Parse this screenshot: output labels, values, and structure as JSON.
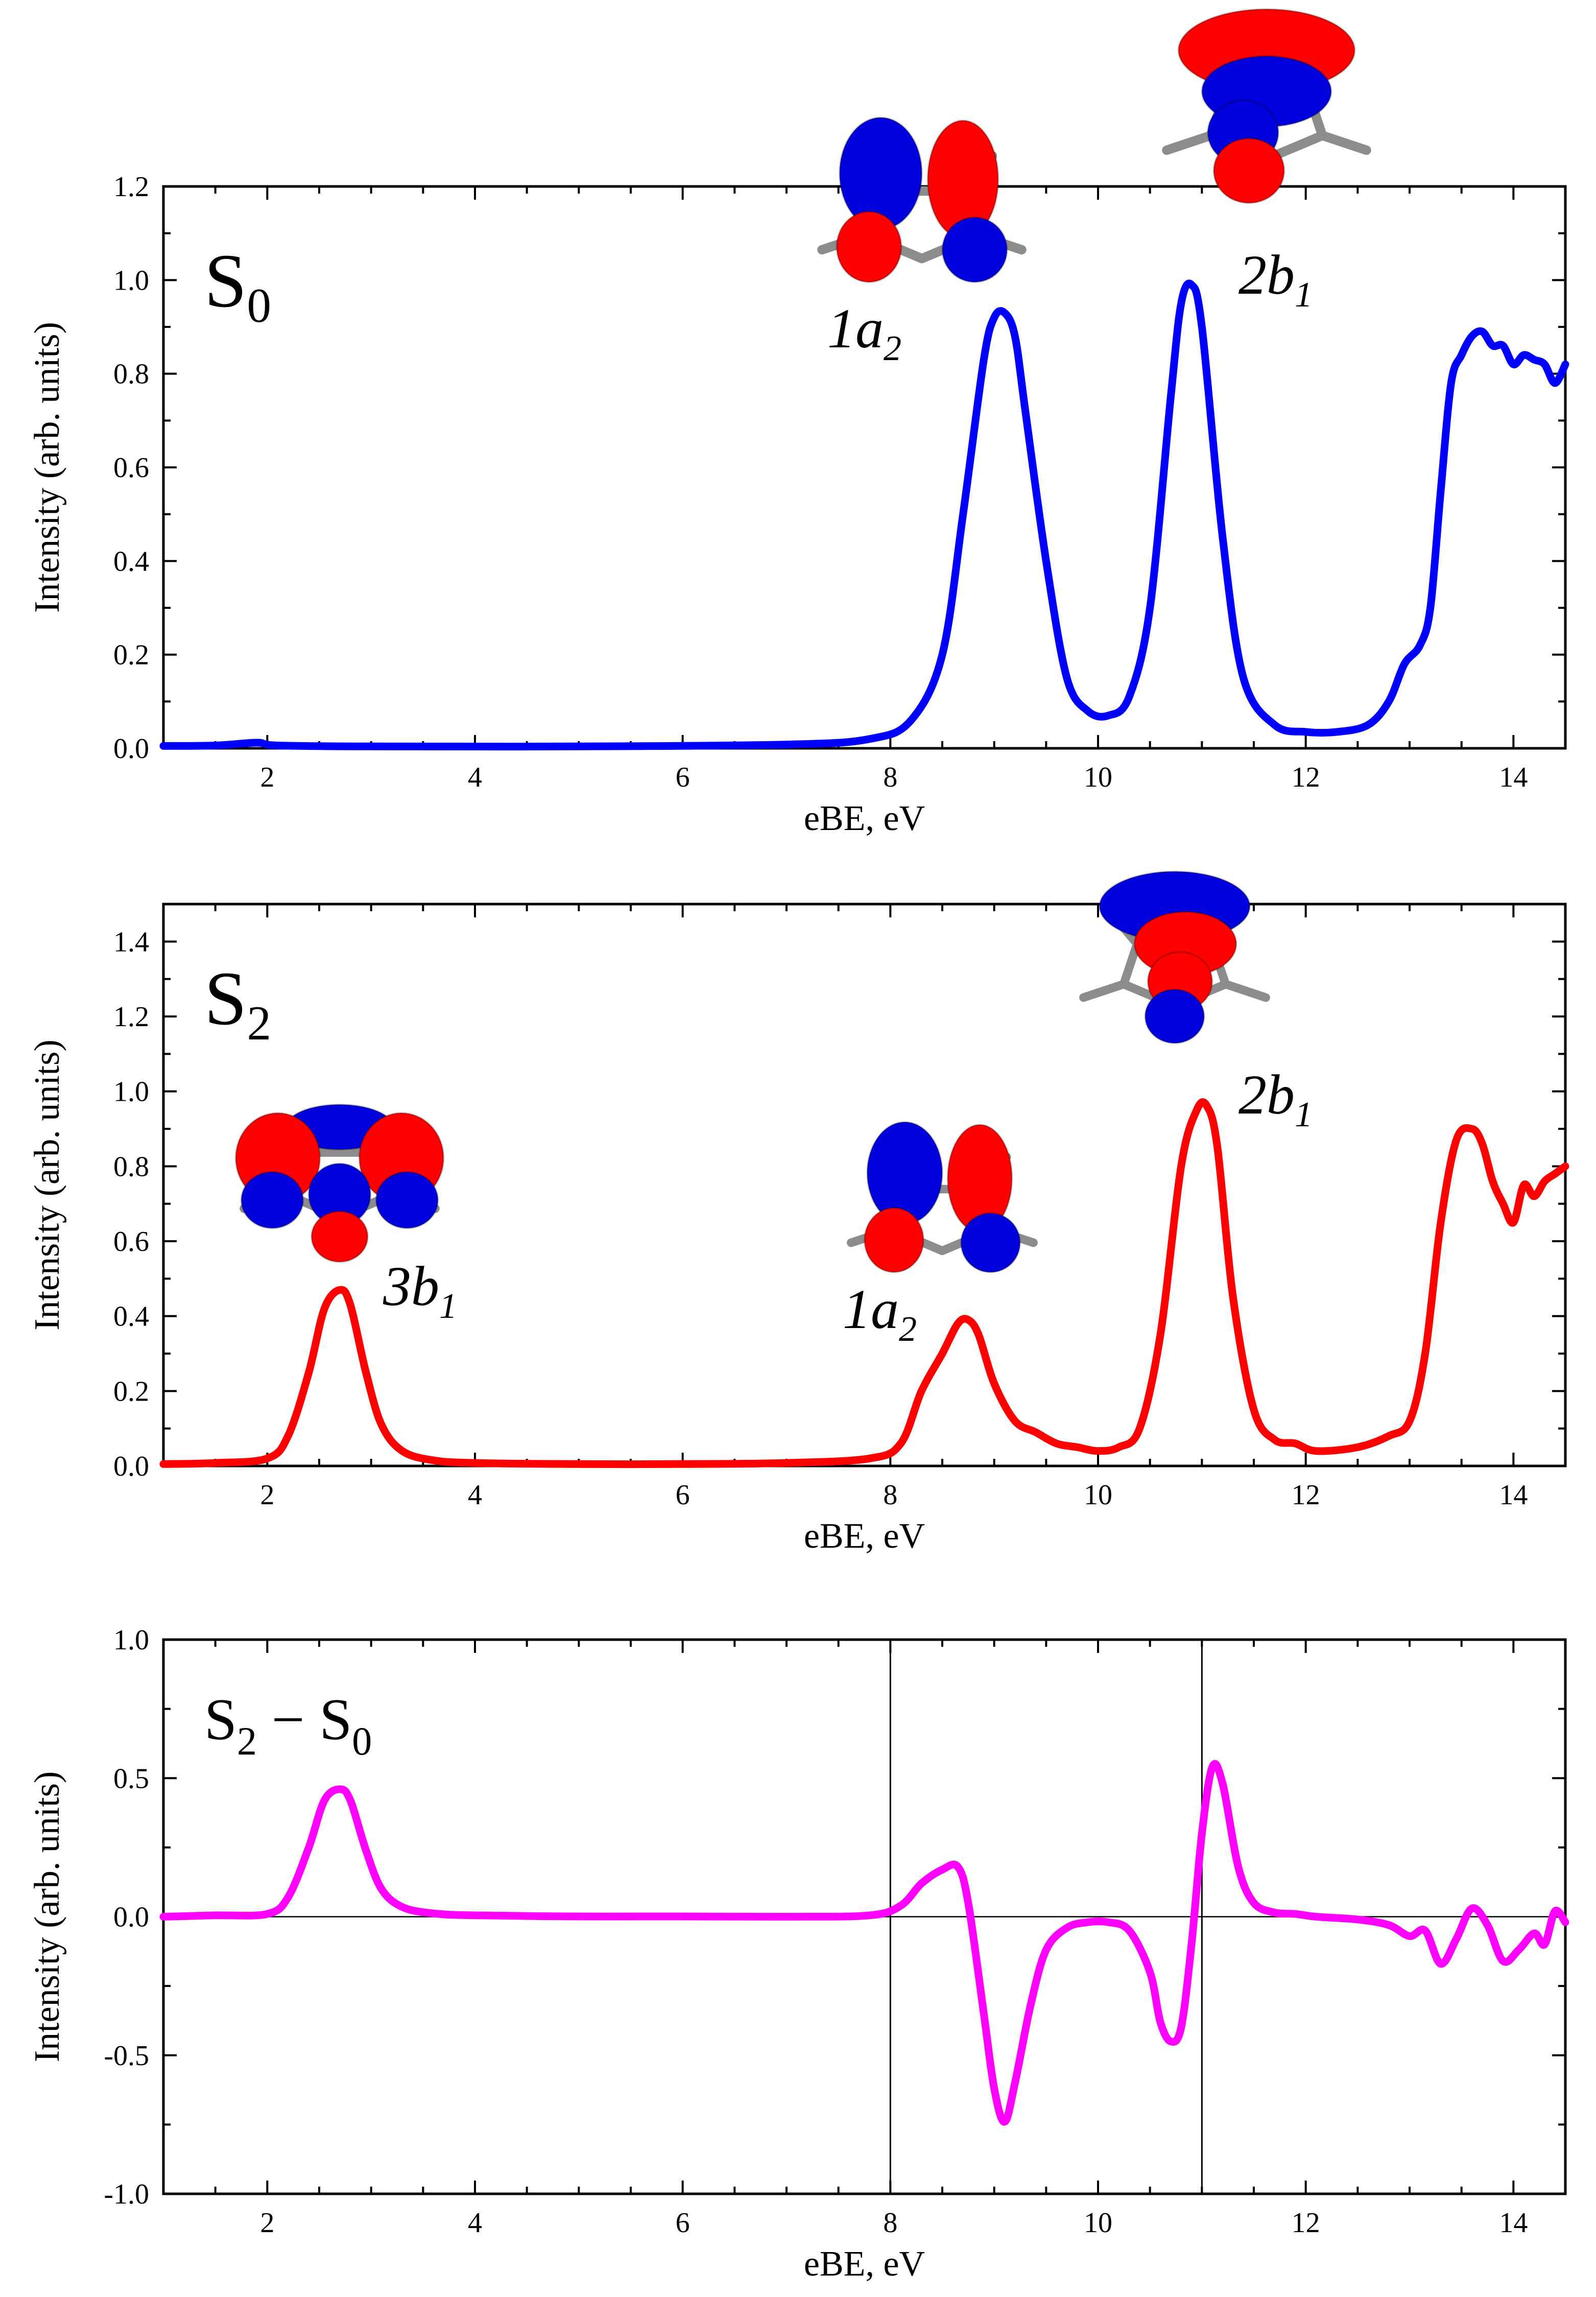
{
  "chart_data": [
    {
      "type": "line",
      "panel": "S0",
      "label_main": "S",
      "label_sub": "0",
      "xlabel": "eBE, eV",
      "ylabel": "Intensity (arb. units)",
      "xlim": [
        1.0,
        14.5
      ],
      "ylim": [
        0.0,
        1.2
      ],
      "xticks": [
        "2",
        "4",
        "6",
        "8",
        "10",
        "12",
        "14"
      ],
      "yticks": [
        "0.0",
        "0.2",
        "0.4",
        "0.6",
        "0.8",
        "1.0",
        "1.2"
      ],
      "color": "#0000ff",
      "x": [
        1.0,
        1.5,
        1.9,
        2.1,
        3.0,
        5.0,
        7.0,
        7.8,
        8.2,
        8.5,
        8.7,
        8.9,
        9.0,
        9.1,
        9.2,
        9.3,
        9.5,
        9.7,
        9.9,
        10.1,
        10.3,
        10.5,
        10.7,
        10.8,
        10.9,
        11.0,
        11.2,
        11.4,
        11.7,
        12.0,
        12.3,
        12.6,
        12.8,
        12.95,
        13.1,
        13.2,
        13.3,
        13.4,
        13.5,
        13.6,
        13.7,
        13.8,
        13.9,
        14.0,
        14.1,
        14.2,
        14.3,
        14.4,
        14.5
      ],
      "y": [
        0.005,
        0.006,
        0.012,
        0.006,
        0.004,
        0.004,
        0.008,
        0.02,
        0.06,
        0.2,
        0.5,
        0.83,
        0.92,
        0.93,
        0.88,
        0.72,
        0.4,
        0.15,
        0.08,
        0.07,
        0.11,
        0.3,
        0.75,
        0.95,
        0.99,
        0.9,
        0.45,
        0.15,
        0.05,
        0.035,
        0.035,
        0.05,
        0.1,
        0.18,
        0.22,
        0.3,
        0.55,
        0.78,
        0.84,
        0.88,
        0.89,
        0.86,
        0.86,
        0.82,
        0.84,
        0.83,
        0.82,
        0.78,
        0.82
      ],
      "annotations": [
        {
          "label": "1a",
          "sub": "2",
          "x": 9.1
        },
        {
          "label": "2b",
          "sub": "1",
          "x": 10.9
        }
      ]
    },
    {
      "type": "line",
      "panel": "S2",
      "label_main": "S",
      "label_sub": "2",
      "xlabel": "eBE, eV",
      "ylabel": "Intensity (arb. units)",
      "xlim": [
        1.0,
        14.5
      ],
      "ylim": [
        0.0,
        1.5
      ],
      "xticks": [
        "2",
        "4",
        "6",
        "8",
        "10",
        "12",
        "14"
      ],
      "yticks": [
        "0.0",
        "0.2",
        "0.4",
        "0.6",
        "0.8",
        "1.0",
        "1.2",
        "1.4"
      ],
      "color": "#ff0000",
      "x": [
        1.0,
        1.5,
        2.0,
        2.2,
        2.4,
        2.55,
        2.7,
        2.8,
        2.95,
        3.1,
        3.3,
        3.6,
        4.0,
        5.0,
        6.0,
        7.0,
        7.8,
        8.1,
        8.3,
        8.5,
        8.65,
        8.75,
        8.85,
        9.0,
        9.2,
        9.4,
        9.6,
        9.8,
        10.0,
        10.2,
        10.4,
        10.6,
        10.8,
        10.95,
        11.05,
        11.15,
        11.3,
        11.5,
        11.7,
        11.9,
        12.1,
        12.5,
        12.8,
        13.0,
        13.15,
        13.3,
        13.45,
        13.6,
        13.7,
        13.8,
        13.9,
        14.0,
        14.1,
        14.2,
        14.3,
        14.4,
        14.5
      ],
      "y": [
        0.005,
        0.008,
        0.02,
        0.08,
        0.25,
        0.42,
        0.47,
        0.43,
        0.25,
        0.11,
        0.04,
        0.015,
        0.008,
        0.005,
        0.005,
        0.008,
        0.02,
        0.06,
        0.2,
        0.3,
        0.38,
        0.39,
        0.35,
        0.22,
        0.12,
        0.09,
        0.06,
        0.05,
        0.04,
        0.05,
        0.1,
        0.35,
        0.8,
        0.95,
        0.96,
        0.85,
        0.45,
        0.15,
        0.07,
        0.06,
        0.04,
        0.05,
        0.08,
        0.12,
        0.3,
        0.65,
        0.87,
        0.9,
        0.86,
        0.76,
        0.7,
        0.65,
        0.75,
        0.72,
        0.76,
        0.78,
        0.8
      ],
      "annotations": [
        {
          "label": "3b",
          "sub": "1",
          "x": 2.7
        },
        {
          "label": "1a",
          "sub": "2",
          "x": 8.7
        },
        {
          "label": "2b",
          "sub": "1",
          "x": 11.05
        }
      ]
    },
    {
      "type": "line",
      "panel": "S2-S0",
      "label_main": "S",
      "label_sub": "2",
      "label_minus": " − S",
      "label_sub2": "0",
      "xlabel": "eBE, eV",
      "ylabel": "Intensity (arb. units)",
      "xlim": [
        1.0,
        14.5
      ],
      "ylim": [
        -1.0,
        1.0
      ],
      "xticks": [
        "2",
        "4",
        "6",
        "8",
        "10",
        "12",
        "14"
      ],
      "yticks": [
        "-1.0",
        "-0.5",
        "0.0",
        "0.5",
        "1.0"
      ],
      "vlines": [
        8.0,
        11.0
      ],
      "hline": 0.0,
      "color": "#ff00ff",
      "x": [
        1.0,
        1.5,
        2.0,
        2.2,
        2.4,
        2.55,
        2.7,
        2.8,
        2.95,
        3.1,
        3.3,
        3.6,
        4.0,
        5.0,
        6.0,
        7.0,
        7.8,
        8.1,
        8.3,
        8.5,
        8.65,
        8.75,
        8.9,
        9.0,
        9.1,
        9.2,
        9.35,
        9.5,
        9.7,
        9.9,
        10.1,
        10.3,
        10.5,
        10.6,
        10.7,
        10.8,
        10.9,
        11.0,
        11.1,
        11.2,
        11.35,
        11.5,
        11.7,
        11.9,
        12.1,
        12.5,
        12.8,
        13.0,
        13.15,
        13.3,
        13.45,
        13.6,
        13.75,
        13.9,
        14.05,
        14.2,
        14.3,
        14.4,
        14.5
      ],
      "y": [
        0.0,
        0.005,
        0.01,
        0.07,
        0.25,
        0.42,
        0.46,
        0.42,
        0.24,
        0.1,
        0.035,
        0.012,
        0.005,
        0.001,
        0.001,
        0.0,
        0.005,
        0.04,
        0.12,
        0.17,
        0.18,
        0.05,
        -0.35,
        -0.62,
        -0.74,
        -0.6,
        -0.32,
        -0.12,
        -0.04,
        -0.02,
        -0.02,
        -0.05,
        -0.2,
        -0.38,
        -0.45,
        -0.4,
        -0.1,
        0.3,
        0.54,
        0.48,
        0.18,
        0.05,
        0.015,
        0.01,
        0.0,
        -0.01,
        -0.03,
        -0.07,
        -0.05,
        -0.17,
        -0.08,
        0.03,
        -0.03,
        -0.16,
        -0.12,
        -0.06,
        -0.1,
        0.02,
        -0.02
      ]
    }
  ],
  "colors": {
    "lobe_red": "#ff0000",
    "lobe_blue": "#0000dd",
    "bond_gray": "#8c8c8c"
  }
}
